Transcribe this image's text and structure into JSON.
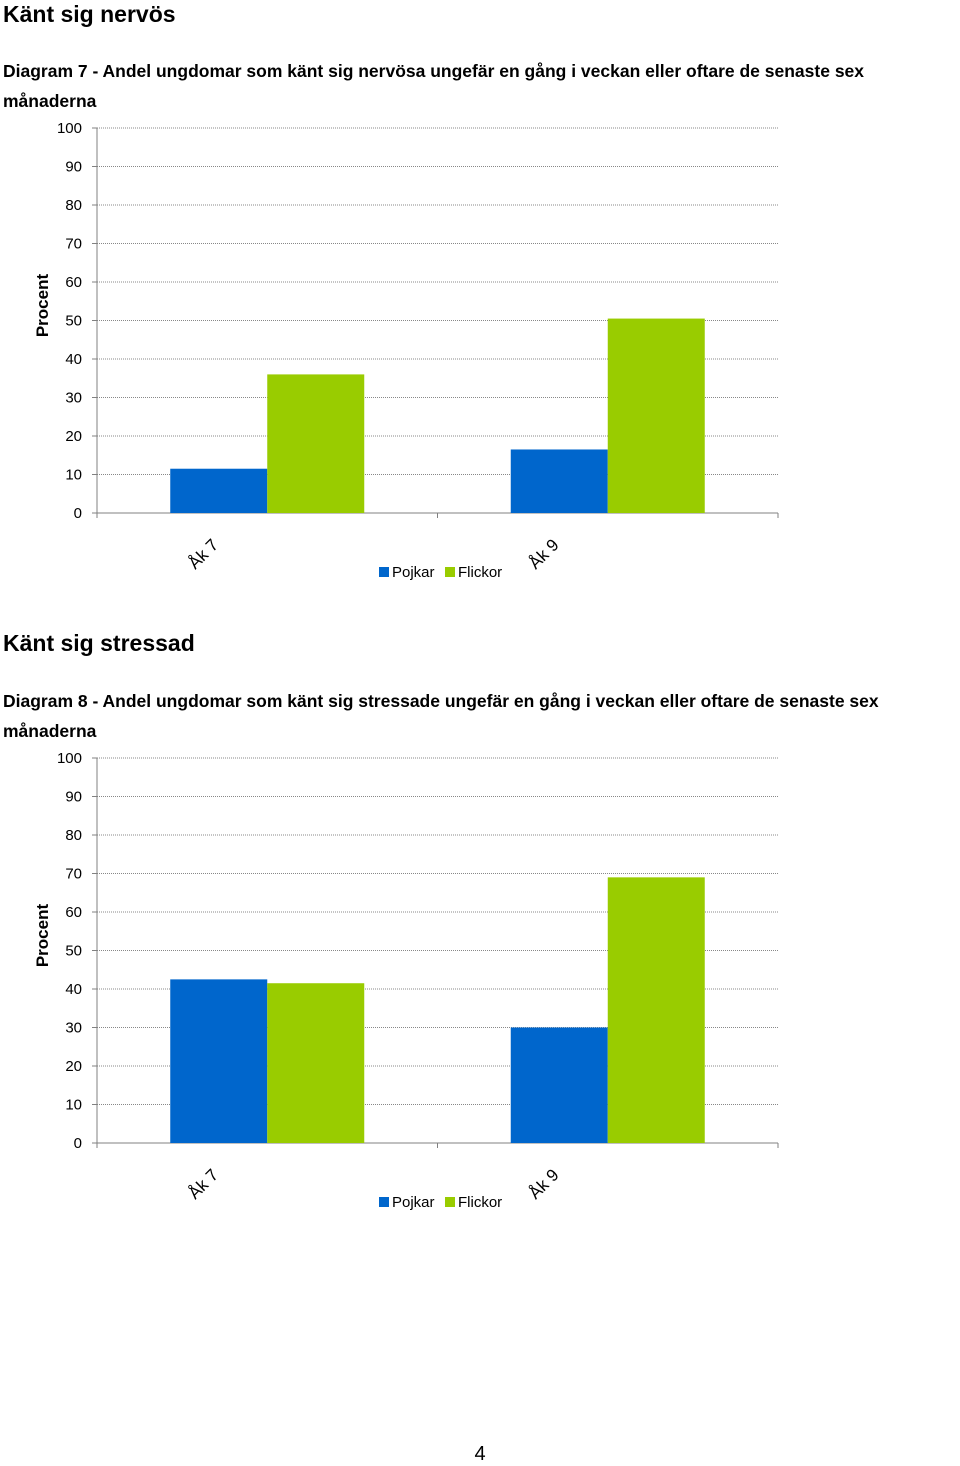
{
  "sections": [
    {
      "heading": "Känt sig nervös",
      "caption": "Diagram 7 - Andel ungdomar som känt sig nervösa ungefär en gång i veckan eller oftare de senaste sex månaderna"
    },
    {
      "heading": "Känt sig stressad",
      "caption": "Diagram 8 - Andel ungdomar som känt sig stressade ungefär en gång i veckan eller oftare de senaste sex månaderna"
    }
  ],
  "page_number": "4",
  "colors": {
    "pojkar": "#0066CC",
    "flickor": "#99CC00",
    "grid": "#888888",
    "axis": "#808080"
  },
  "chart_data": [
    {
      "type": "bar",
      "categories": [
        "Åk 7",
        "Åk 9"
      ],
      "series": [
        {
          "name": "Pojkar",
          "values": [
            11.5,
            16.5
          ]
        },
        {
          "name": "Flickor",
          "values": [
            36,
            50.5
          ]
        }
      ],
      "ylabel": "Procent",
      "ylim": [
        0,
        100
      ],
      "yticks": [
        0,
        10,
        20,
        30,
        40,
        50,
        60,
        70,
        80,
        90,
        100
      ],
      "grid": true,
      "legend": "bottom"
    },
    {
      "type": "bar",
      "categories": [
        "Åk 7",
        "Åk 9"
      ],
      "series": [
        {
          "name": "Pojkar",
          "values": [
            42.5,
            30
          ]
        },
        {
          "name": "Flickor",
          "values": [
            41.5,
            69
          ]
        }
      ],
      "ylabel": "Procent",
      "ylim": [
        0,
        100
      ],
      "yticks": [
        0,
        10,
        20,
        30,
        40,
        50,
        60,
        70,
        80,
        90,
        100
      ],
      "grid": true,
      "legend": "bottom"
    }
  ]
}
